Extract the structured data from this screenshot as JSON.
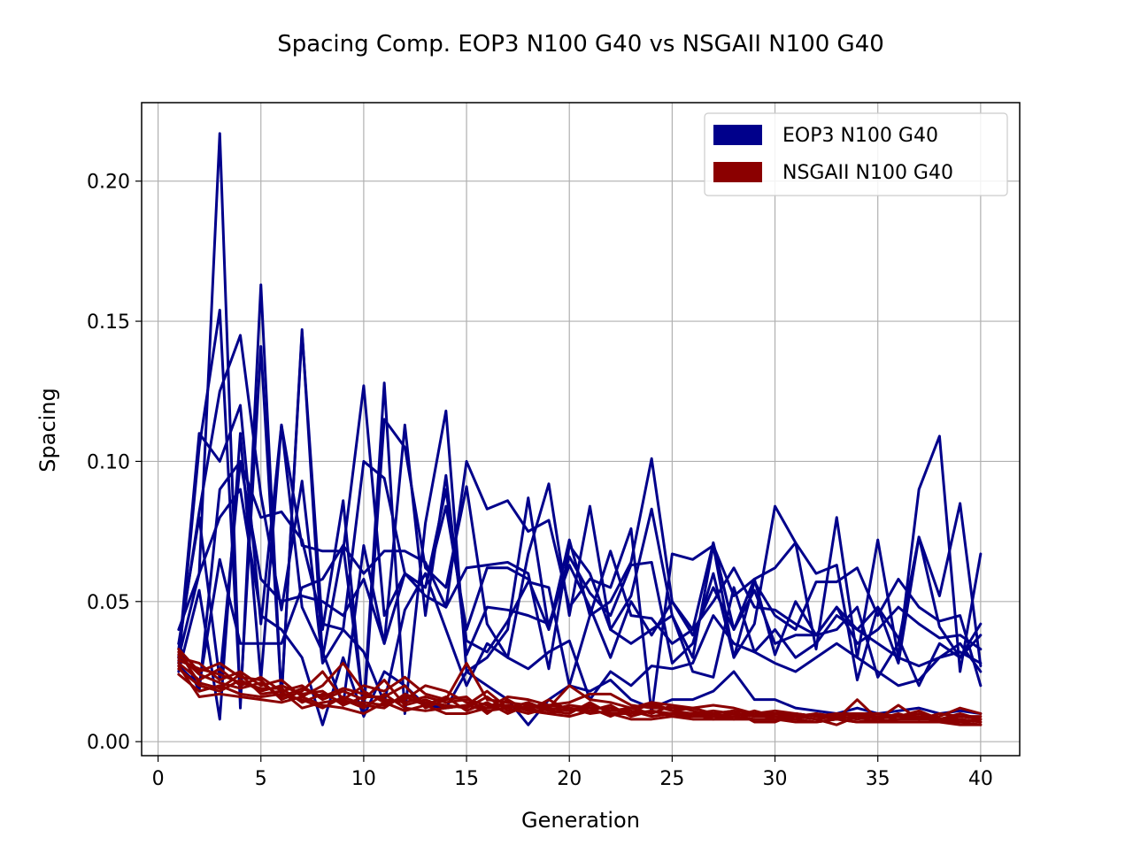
{
  "chart_data": {
    "type": "line",
    "title": "Spacing Comp. EOP3 N100 G40 vs NSGAII N100 G40",
    "xlabel": "Generation",
    "ylabel": "Spacing",
    "xlim": [
      -0.8,
      41.9
    ],
    "ylim": [
      -0.005,
      0.228
    ],
    "xticks": [
      0,
      5,
      10,
      15,
      20,
      25,
      30,
      35,
      40
    ],
    "yticks": [
      0.0,
      0.05,
      0.1,
      0.15,
      0.2
    ],
    "xtick_labels": [
      "0",
      "5",
      "10",
      "15",
      "20",
      "25",
      "30",
      "35",
      "40"
    ],
    "ytick_labels": [
      "0.00",
      "0.05",
      "0.10",
      "0.15",
      "0.20"
    ],
    "grid": true,
    "legend_position": "top-right",
    "groups": [
      {
        "name": "EOP3 N100 G40",
        "color": "#00008b",
        "series": [
          {
            "values": [
              0.04,
              0.06,
              0.217,
              0.012,
              0.163,
              0.015,
              0.147,
              0.03,
              0.07,
              0.012,
              0.128,
              0.01,
              0.078,
              0.118,
              0.025,
              0.03,
              0.04,
              0.087,
              0.04,
              0.072,
              0.045,
              0.05,
              0.064,
              0.101,
              0.05,
              0.04,
              0.071,
              0.04,
              0.058,
              0.062,
              0.071,
              0.033,
              0.08,
              0.03,
              0.072,
              0.03,
              0.09,
              0.109,
              0.025,
              0.067
            ]
          },
          {
            "values": [
              0.028,
              0.105,
              0.154,
              0.015,
              0.141,
              0.016,
              0.146,
              0.04,
              0.086,
              0.01,
              0.115,
              0.105,
              0.062,
              0.055,
              0.091,
              0.042,
              0.03,
              0.067,
              0.092,
              0.045,
              0.084,
              0.04,
              0.052,
              0.083,
              0.045,
              0.03,
              0.07,
              0.03,
              0.042,
              0.084,
              0.071,
              0.06,
              0.063,
              0.022,
              0.048,
              0.028,
              0.073,
              0.052,
              0.085,
              0.027
            ]
          },
          {
            "values": [
              0.033,
              0.082,
              0.125,
              0.145,
              0.088,
              0.047,
              0.093,
              0.028,
              0.04,
              0.1,
              0.094,
              0.06,
              0.052,
              0.048,
              0.1,
              0.083,
              0.086,
              0.075,
              0.079,
              0.048,
              0.058,
              0.055,
              0.076,
              0.01,
              0.067,
              0.065,
              0.07,
              0.052,
              0.058,
              0.031,
              0.05,
              0.038,
              0.04,
              0.048,
              0.023,
              0.035,
              0.073,
              0.041,
              0.03,
              0.042
            ]
          },
          {
            "values": [
              0.03,
              0.11,
              0.1,
              0.12,
              0.042,
              0.113,
              0.07,
              0.068,
              0.068,
              0.127,
              0.045,
              0.06,
              0.055,
              0.084,
              0.04,
              0.062,
              0.062,
              0.058,
              0.04,
              0.066,
              0.053,
              0.045,
              0.063,
              0.064,
              0.028,
              0.035,
              0.06,
              0.03,
              0.057,
              0.045,
              0.04,
              0.057,
              0.057,
              0.062,
              0.045,
              0.058,
              0.048,
              0.043,
              0.045,
              0.02
            ]
          },
          {
            "values": [
              0.025,
              0.054,
              0.008,
              0.11,
              0.022,
              0.113,
              0.048,
              0.032,
              0.013,
              0.07,
              0.035,
              0.113,
              0.045,
              0.095,
              0.031,
              0.048,
              0.047,
              0.045,
              0.042,
              0.063,
              0.048,
              0.03,
              0.05,
              0.038,
              0.05,
              0.038,
              0.055,
              0.04,
              0.054,
              0.035,
              0.038,
              0.038,
              0.048,
              0.04,
              0.048,
              0.037,
              0.02,
              0.035,
              0.03,
              0.038
            ]
          },
          {
            "values": [
              0.035,
              0.018,
              0.09,
              0.1,
              0.058,
              0.05,
              0.052,
              0.05,
              0.045,
              0.058,
              0.035,
              0.06,
              0.055,
              0.09,
              0.036,
              0.032,
              0.043,
              0.057,
              0.055,
              0.02,
              0.045,
              0.068,
              0.045,
              0.044,
              0.035,
              0.04,
              0.05,
              0.062,
              0.048,
              0.047,
              0.042,
              0.038,
              0.048,
              0.035,
              0.04,
              0.048,
              0.042,
              0.037,
              0.038,
              0.033
            ]
          },
          {
            "values": [
              0.027,
              0.02,
              0.065,
              0.035,
              0.035,
              0.035,
              0.055,
              0.058,
              0.07,
              0.06,
              0.068,
              0.068,
              0.064,
              0.048,
              0.062,
              0.063,
              0.064,
              0.06,
              0.026,
              0.07,
              0.06,
              0.04,
              0.035,
              0.04,
              0.045,
              0.025,
              0.023,
              0.055,
              0.032,
              0.04,
              0.03,
              0.035,
              0.045,
              0.04,
              0.035,
              0.03,
              0.027,
              0.03,
              0.035,
              0.025
            ]
          },
          {
            "values": [
              0.035,
              0.08,
              0.022,
              0.1,
              0.08,
              0.082,
              0.072,
              0.042,
              0.04,
              0.032,
              0.014,
              0.047,
              0.06,
              0.04,
              0.02,
              0.035,
              0.03,
              0.026,
              0.032,
              0.036,
              0.015,
              0.025,
              0.02,
              0.027,
              0.026,
              0.028,
              0.045,
              0.035,
              0.032,
              0.028,
              0.025,
              0.03,
              0.035,
              0.03,
              0.025,
              0.02,
              0.022,
              0.03,
              0.032,
              0.028
            ]
          },
          {
            "values": [
              0.03,
              0.06,
              0.08,
              0.09,
              0.045,
              0.04,
              0.03,
              0.006,
              0.03,
              0.009,
              0.025,
              0.02,
              0.013,
              0.012,
              0.025,
              0.02,
              0.015,
              0.006,
              0.015,
              0.02,
              0.018,
              0.022,
              0.015,
              0.012,
              0.015,
              0.015,
              0.018,
              0.025,
              0.015,
              0.015,
              0.012,
              0.011,
              0.01,
              0.012,
              0.01,
              0.011,
              0.012,
              0.01,
              0.011,
              0.01
            ]
          }
        ]
      },
      {
        "name": "NSGAII N100 G40",
        "color": "#8b0000",
        "series": [
          {
            "values": [
              0.033,
              0.025,
              0.028,
              0.023,
              0.022,
              0.015,
              0.018,
              0.025,
              0.015,
              0.02,
              0.018,
              0.023,
              0.017,
              0.015,
              0.028,
              0.015,
              0.014,
              0.013,
              0.012,
              0.02,
              0.015,
              0.014,
              0.012,
              0.014,
              0.013,
              0.012,
              0.01,
              0.011,
              0.01,
              0.01,
              0.009,
              0.01,
              0.008,
              0.015,
              0.008,
              0.013,
              0.008,
              0.009,
              0.012,
              0.01
            ]
          },
          {
            "values": [
              0.03,
              0.028,
              0.022,
              0.025,
              0.02,
              0.022,
              0.016,
              0.02,
              0.028,
              0.018,
              0.014,
              0.015,
              0.02,
              0.018,
              0.014,
              0.012,
              0.016,
              0.015,
              0.013,
              0.014,
              0.017,
              0.017,
              0.013,
              0.012,
              0.012,
              0.012,
              0.013,
              0.012,
              0.01,
              0.011,
              0.01,
              0.009,
              0.01,
              0.009,
              0.01,
              0.009,
              0.011,
              0.008,
              0.01,
              0.008
            ]
          },
          {
            "values": [
              0.028,
              0.022,
              0.026,
              0.02,
              0.023,
              0.018,
              0.02,
              0.015,
              0.018,
              0.015,
              0.022,
              0.013,
              0.015,
              0.012,
              0.013,
              0.018,
              0.012,
              0.014,
              0.011,
              0.013,
              0.012,
              0.012,
              0.01,
              0.014,
              0.011,
              0.01,
              0.011,
              0.01,
              0.009,
              0.01,
              0.01,
              0.009,
              0.008,
              0.009,
              0.009,
              0.008,
              0.009,
              0.007,
              0.008,
              0.007
            ]
          },
          {
            "values": [
              0.026,
              0.02,
              0.018,
              0.022,
              0.018,
              0.02,
              0.017,
              0.018,
              0.013,
              0.016,
              0.016,
              0.02,
              0.012,
              0.015,
              0.016,
              0.01,
              0.015,
              0.011,
              0.015,
              0.011,
              0.013,
              0.011,
              0.012,
              0.01,
              0.013,
              0.011,
              0.009,
              0.009,
              0.011,
              0.009,
              0.008,
              0.01,
              0.009,
              0.01,
              0.008,
              0.01,
              0.008,
              0.01,
              0.009,
              0.009
            ]
          },
          {
            "values": [
              0.024,
              0.018,
              0.02,
              0.017,
              0.016,
              0.017,
              0.015,
              0.012,
              0.016,
              0.013,
              0.012,
              0.017,
              0.014,
              0.013,
              0.012,
              0.016,
              0.011,
              0.012,
              0.01,
              0.012,
              0.011,
              0.013,
              0.009,
              0.011,
              0.01,
              0.009,
              0.01,
              0.008,
              0.01,
              0.008,
              0.009,
              0.008,
              0.009,
              0.008,
              0.009,
              0.009,
              0.01,
              0.008,
              0.007,
              0.008
            ]
          },
          {
            "values": [
              0.031,
              0.024,
              0.021,
              0.019,
              0.021,
              0.016,
              0.019,
              0.016,
              0.019,
              0.017,
              0.015,
              0.014,
              0.016,
              0.014,
              0.015,
              0.013,
              0.013,
              0.012,
              0.013,
              0.012,
              0.01,
              0.011,
              0.011,
              0.009,
              0.01,
              0.01,
              0.008,
              0.009,
              0.008,
              0.008,
              0.008,
              0.007,
              0.008,
              0.007,
              0.008,
              0.007,
              0.007,
              0.007,
              0.007,
              0.006
            ]
          },
          {
            "values": [
              0.029,
              0.026,
              0.024,
              0.021,
              0.019,
              0.019,
              0.014,
              0.017,
              0.014,
              0.014,
              0.013,
              0.016,
              0.013,
              0.016,
              0.011,
              0.014,
              0.01,
              0.013,
              0.011,
              0.01,
              0.014,
              0.01,
              0.01,
              0.011,
              0.009,
              0.009,
              0.009,
              0.01,
              0.009,
              0.009,
              0.009,
              0.008,
              0.006,
              0.009,
              0.007,
              0.008,
              0.008,
              0.008,
              0.008,
              0.007
            ]
          },
          {
            "values": [
              0.032,
              0.021,
              0.019,
              0.024,
              0.017,
              0.018,
              0.012,
              0.014,
              0.015,
              0.012,
              0.017,
              0.012,
              0.011,
              0.012,
              0.013,
              0.011,
              0.012,
              0.01,
              0.012,
              0.011,
              0.012,
              0.009,
              0.012,
              0.013,
              0.011,
              0.012,
              0.01,
              0.011,
              0.007,
              0.007,
              0.01,
              0.009,
              0.01,
              0.01,
              0.01,
              0.009,
              0.009,
              0.008,
              0.009,
              0.008
            ]
          },
          {
            "values": [
              0.027,
              0.016,
              0.017,
              0.016,
              0.015,
              0.014,
              0.016,
              0.013,
              0.012,
              0.01,
              0.014,
              0.011,
              0.013,
              0.01,
              0.01,
              0.012,
              0.013,
              0.011,
              0.01,
              0.009,
              0.011,
              0.01,
              0.008,
              0.008,
              0.009,
              0.008,
              0.008,
              0.008,
              0.008,
              0.008,
              0.007,
              0.007,
              0.008,
              0.007,
              0.007,
              0.007,
              0.007,
              0.007,
              0.006,
              0.006
            ]
          }
        ]
      }
    ]
  }
}
